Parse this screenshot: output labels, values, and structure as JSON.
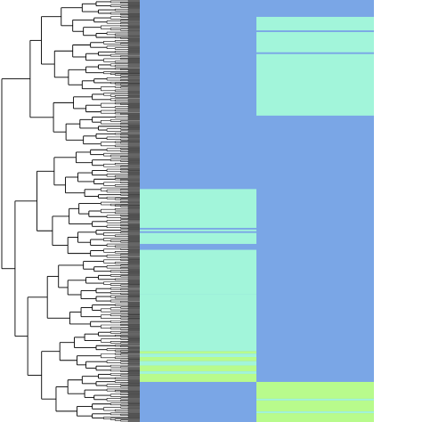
{
  "chart_data": {
    "type": "heatmap",
    "title": "",
    "xlabel": "",
    "ylabel": "",
    "row_dendrogram": true,
    "n_columns": 2,
    "colors": {
      "background": "#7aa6e6",
      "mid": "#a2f5da",
      "high": "#b8fb8c",
      "dendrogram": "#000000"
    },
    "column_blocks": [
      {
        "name": "",
        "segments": [
          {
            "from": 0.0,
            "to": 0.448,
            "level": 0
          },
          {
            "from": 0.448,
            "to": 0.54,
            "level": 1
          },
          {
            "from": 0.54,
            "to": 0.544,
            "level": 0
          },
          {
            "from": 0.544,
            "to": 0.548,
            "level": 1
          },
          {
            "from": 0.548,
            "to": 0.552,
            "level": 0
          },
          {
            "from": 0.552,
            "to": 0.578,
            "level": 1
          },
          {
            "from": 0.578,
            "to": 0.592,
            "level": 0
          },
          {
            "from": 0.592,
            "to": 0.697,
            "level": 1
          },
          {
            "from": 0.697,
            "to": 0.832,
            "level": 1
          },
          {
            "from": 0.832,
            "to": 0.838,
            "level": 2
          },
          {
            "from": 0.838,
            "to": 0.846,
            "level": 1
          },
          {
            "from": 0.846,
            "to": 0.856,
            "level": 2
          },
          {
            "from": 0.856,
            "to": 0.866,
            "level": 1
          },
          {
            "from": 0.866,
            "to": 0.88,
            "level": 2
          },
          {
            "from": 0.88,
            "to": 0.886,
            "level": 1
          },
          {
            "from": 0.886,
            "to": 0.905,
            "level": 2
          },
          {
            "from": 0.905,
            "to": 1.0,
            "level": 0
          }
        ]
      },
      {
        "name": "",
        "segments": [
          {
            "from": 0.0,
            "to": 0.04,
            "level": 0
          },
          {
            "from": 0.04,
            "to": 0.072,
            "level": 1
          },
          {
            "from": 0.072,
            "to": 0.076,
            "level": 0
          },
          {
            "from": 0.076,
            "to": 0.124,
            "level": 1
          },
          {
            "from": 0.124,
            "to": 0.128,
            "level": 0
          },
          {
            "from": 0.128,
            "to": 0.274,
            "level": 1
          },
          {
            "from": 0.274,
            "to": 0.905,
            "level": 0
          },
          {
            "from": 0.905,
            "to": 0.945,
            "level": 2
          },
          {
            "from": 0.945,
            "to": 0.949,
            "level": 1
          },
          {
            "from": 0.949,
            "to": 0.975,
            "level": 2
          },
          {
            "from": 0.975,
            "to": 0.979,
            "level": 1
          },
          {
            "from": 0.979,
            "to": 1.0,
            "level": 2
          }
        ]
      }
    ]
  }
}
